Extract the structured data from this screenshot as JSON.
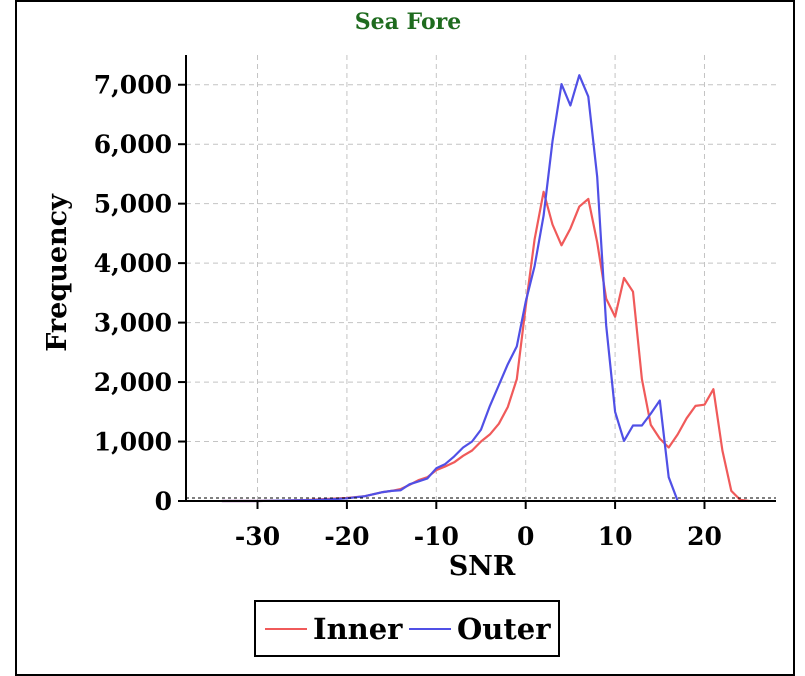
{
  "chart_data": {
    "type": "line",
    "title": "Sea Fore",
    "xlabel": "SNR",
    "ylabel": "Frequency",
    "xlim": [
      -38,
      28
    ],
    "ylim": [
      0,
      7500
    ],
    "xticks": [
      -30,
      -20,
      -10,
      0,
      10,
      20
    ],
    "xtick_labels": [
      "-30",
      "-20",
      "-10",
      "0",
      "10",
      "20"
    ],
    "yticks": [
      0,
      1000,
      2000,
      3000,
      4000,
      5000,
      6000,
      7000
    ],
    "ytick_labels": [
      "0",
      "1,000",
      "2,000",
      "3,000",
      "4,000",
      "5,000",
      "6,000",
      "7,000"
    ],
    "grid": true,
    "legend": "bottom",
    "series": [
      {
        "name": "Inner",
        "color": "#f05a5a",
        "x": [
          -34,
          -32,
          -30,
          -28,
          -26,
          -24,
          -22,
          -20,
          -18,
          -16,
          -15,
          -14,
          -13,
          -12,
          -11,
          -10,
          -9,
          -8,
          -7,
          -6,
          -5,
          -4,
          -3,
          -2,
          -1,
          0,
          1,
          2,
          3,
          4,
          5,
          6,
          7,
          8,
          9,
          10,
          11,
          12,
          13,
          14,
          15,
          16,
          17,
          18,
          19,
          20,
          21,
          22,
          23,
          24,
          25
        ],
        "y": [
          0,
          0,
          0,
          5,
          10,
          20,
          35,
          50,
          80,
          150,
          170,
          200,
          270,
          350,
          400,
          520,
          580,
          650,
          760,
          850,
          1000,
          1120,
          1300,
          1580,
          2050,
          3270,
          4400,
          5200,
          4650,
          4300,
          4580,
          4950,
          5080,
          4350,
          3400,
          3100,
          3750,
          3520,
          2050,
          1280,
          1050,
          900,
          1120,
          1390,
          1600,
          1620,
          1880,
          850,
          170,
          20,
          0
        ]
      },
      {
        "name": "Outer",
        "color": "#5050e6",
        "x": [
          -34,
          -32,
          -30,
          -28,
          -26,
          -24,
          -22,
          -20,
          -18,
          -16,
          -15,
          -14,
          -13,
          -12,
          -11,
          -10,
          -9,
          -8,
          -7,
          -6,
          -5,
          -4,
          -3,
          -2,
          -1,
          0,
          1,
          2,
          3,
          4,
          5,
          6,
          7,
          8,
          9,
          10,
          11,
          12,
          13,
          14,
          15,
          16,
          17
        ],
        "y": [
          0,
          0,
          0,
          5,
          10,
          15,
          25,
          45,
          80,
          150,
          170,
          180,
          280,
          330,
          380,
          550,
          620,
          750,
          900,
          1000,
          1200,
          1600,
          1950,
          2300,
          2600,
          3350,
          3950,
          4800,
          6050,
          7010,
          6650,
          7160,
          6800,
          5450,
          2950,
          1500,
          1010,
          1270,
          1270,
          1470,
          1690,
          400,
          0
        ]
      }
    ]
  }
}
